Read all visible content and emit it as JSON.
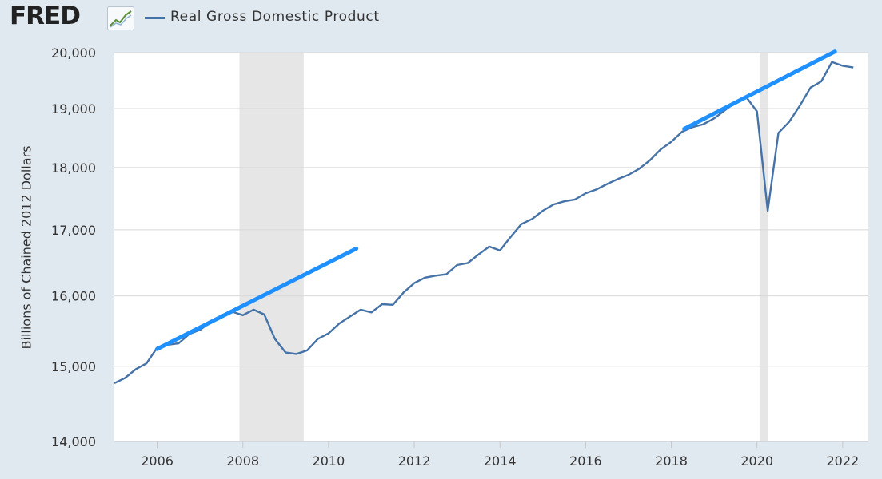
{
  "header": {
    "logo_text": "FRED",
    "legend_label": "Real Gross Domestic Product"
  },
  "colors": {
    "series": "#4572a7",
    "trendline": "#1e90ff",
    "recession": "#e6e6e6",
    "background": "#e1e9f0",
    "plot": "#ffffff"
  },
  "chart_data": {
    "type": "line",
    "title": "",
    "xlabel": "",
    "ylabel": "Billions of Chained 2012 Dollars",
    "xlim": [
      2005.0,
      2022.6
    ],
    "ylim": [
      14000,
      20000
    ],
    "y_scale": "log",
    "yticks": [
      14000,
      15000,
      16000,
      17000,
      18000,
      19000,
      20000
    ],
    "ytick_labels": [
      "14,000",
      "15,000",
      "16,000",
      "17,000",
      "18,000",
      "19,000",
      "20,000"
    ],
    "xticks": [
      2006,
      2008,
      2010,
      2012,
      2014,
      2016,
      2018,
      2020,
      2022
    ],
    "xtick_labels": [
      "2006",
      "2008",
      "2010",
      "2012",
      "2014",
      "2016",
      "2018",
      "2020",
      "2022"
    ],
    "grid": true,
    "legend_position": "top",
    "recessions": [
      [
        2007.92,
        2009.42
      ],
      [
        2020.08,
        2020.25
      ]
    ],
    "series": [
      {
        "name": "Real Gross Domestic Product",
        "x": [
          2005.0,
          2005.25,
          2005.5,
          2005.75,
          2006.0,
          2006.25,
          2006.5,
          2006.75,
          2007.0,
          2007.25,
          2007.5,
          2007.75,
          2008.0,
          2008.25,
          2008.5,
          2008.75,
          2009.0,
          2009.25,
          2009.5,
          2009.75,
          2010.0,
          2010.25,
          2010.5,
          2010.75,
          2011.0,
          2011.25,
          2011.5,
          2011.75,
          2012.0,
          2012.25,
          2012.5,
          2012.75,
          2013.0,
          2013.25,
          2013.5,
          2013.75,
          2014.0,
          2014.25,
          2014.5,
          2014.75,
          2015.0,
          2015.25,
          2015.5,
          2015.75,
          2016.0,
          2016.25,
          2016.5,
          2016.75,
          2017.0,
          2017.25,
          2017.5,
          2017.75,
          2018.0,
          2018.25,
          2018.5,
          2018.75,
          2019.0,
          2019.25,
          2019.5,
          2019.75,
          2020.0,
          2020.25,
          2020.5,
          2020.75,
          2021.0,
          2021.25,
          2021.5,
          2021.75,
          2022.0,
          2022.25
        ],
        "values": [
          14770,
          14840,
          14960,
          15040,
          15260,
          15300,
          15320,
          15450,
          15510,
          15620,
          15700,
          15770,
          15720,
          15800,
          15730,
          15380,
          15190,
          15170,
          15220,
          15380,
          15460,
          15600,
          15700,
          15800,
          15760,
          15880,
          15870,
          16050,
          16190,
          16270,
          16300,
          16320,
          16460,
          16490,
          16620,
          16740,
          16680,
          16890,
          17090,
          17170,
          17300,
          17400,
          17450,
          17480,
          17580,
          17640,
          17730,
          17810,
          17880,
          17980,
          18120,
          18300,
          18430,
          18600,
          18680,
          18730,
          18830,
          18970,
          19110,
          19200,
          18950,
          17300,
          18580,
          18770,
          19050,
          19370,
          19480,
          19830,
          19760,
          19730
        ]
      }
    ],
    "trendlines": [
      {
        "x": [
          2006.0,
          2010.65
        ],
        "values": [
          15240,
          16710
        ]
      },
      {
        "x": [
          2018.3,
          2021.82
        ],
        "values": [
          18650,
          20020
        ]
      }
    ]
  }
}
